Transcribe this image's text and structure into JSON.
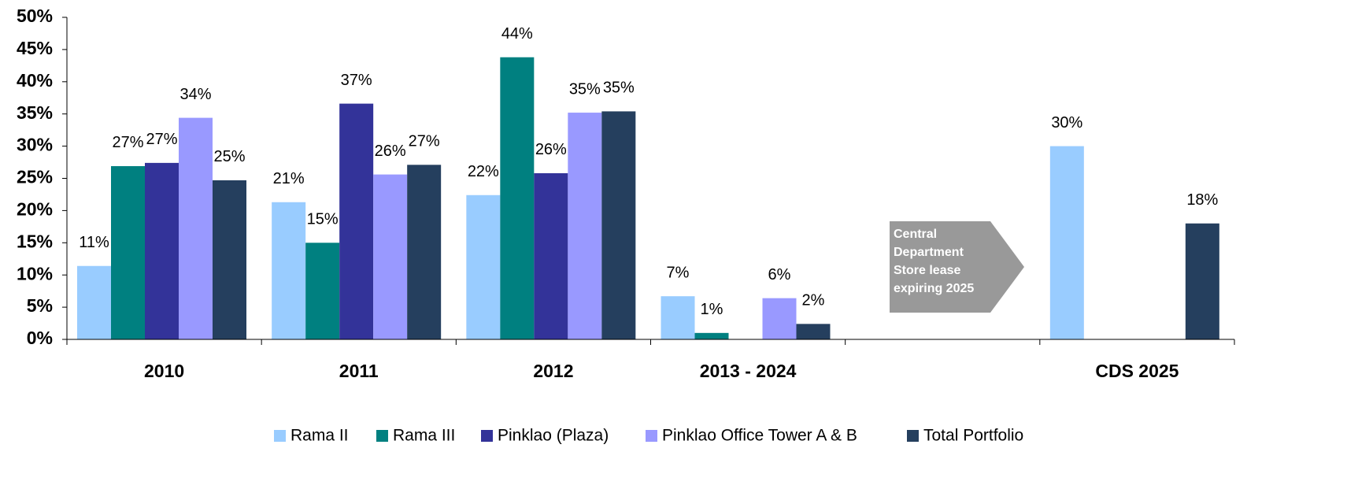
{
  "chart_data": {
    "type": "bar",
    "categories": [
      "2010",
      "2011",
      "2012",
      "2013 - 2024",
      null,
      "CDS  2025"
    ],
    "series": [
      {
        "name": "Rama II",
        "color": "#99ccff",
        "values": [
          11.4,
          21.3,
          22.4,
          6.7,
          null,
          30.0
        ],
        "value_labels": [
          "11%",
          "21%",
          "22%",
          "7%",
          null,
          "30%"
        ]
      },
      {
        "name": "Rama III",
        "color": "#008080",
        "values": [
          26.9,
          15.0,
          43.8,
          1.0,
          null,
          null
        ],
        "value_labels": [
          "27%",
          "15%",
          "44%",
          "1%",
          null,
          null
        ]
      },
      {
        "name": "Pinklao (Plaza)",
        "color": "#333399",
        "values": [
          27.4,
          36.6,
          25.8,
          null,
          null,
          null
        ],
        "value_labels": [
          "27%",
          "37%",
          "26%",
          null,
          null,
          null
        ]
      },
      {
        "name": "Pinklao Office Tower A & B",
        "color": "#9999ff",
        "values": [
          34.4,
          25.6,
          35.2,
          6.4,
          null,
          null
        ],
        "value_labels": [
          "34%",
          "26%",
          "35%",
          "6%",
          null,
          null
        ]
      },
      {
        "name": "Total Portfolio",
        "color": "#253f5e",
        "values": [
          24.7,
          27.1,
          35.4,
          2.4,
          null,
          18.0
        ],
        "value_labels": [
          "25%",
          "27%",
          "35%",
          "2%",
          null,
          "18%"
        ]
      }
    ],
    "ylim": [
      0,
      50
    ],
    "yticks": [
      {
        "value": 0,
        "label": "0%"
      },
      {
        "value": 5,
        "label": "5%"
      },
      {
        "value": 10,
        "label": "10%"
      },
      {
        "value": 15,
        "label": "15%"
      },
      {
        "value": 20,
        "label": "20%"
      },
      {
        "value": 25,
        "label": "25%"
      },
      {
        "value": 30,
        "label": "30%"
      },
      {
        "value": 35,
        "label": "35%"
      },
      {
        "value": 40,
        "label": "40%"
      },
      {
        "value": 45,
        "label": "45%"
      },
      {
        "value": 50,
        "label": "50%"
      }
    ],
    "annotation": [
      "Central",
      "Department",
      "Store lease",
      "expiring 2025"
    ],
    "legend": "bottom"
  }
}
